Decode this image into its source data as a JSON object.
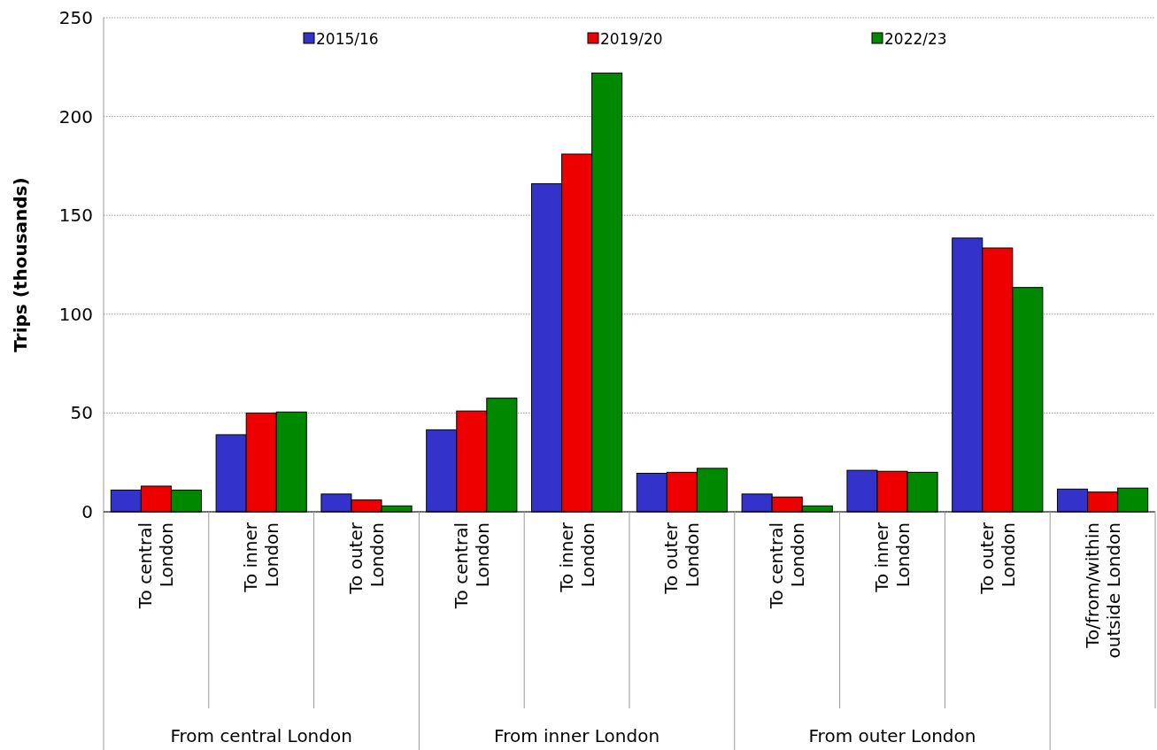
{
  "chart_data": {
    "type": "bar",
    "ylabel": "Trips (thousands)",
    "categories": [
      "To central London",
      "To inner London",
      "To outer London",
      "To central London",
      "To inner London",
      "To outer London",
      "To central London",
      "To inner London",
      "To outer London",
      "To/from/within outside London"
    ],
    "series": [
      {
        "name": "2015/16",
        "color": "#3333cc",
        "values": [
          11,
          39,
          9,
          41.5,
          166,
          19.5,
          9,
          21,
          138.5,
          11.5
        ]
      },
      {
        "name": "2019/20",
        "color": "#ee0000",
        "values": [
          13,
          50,
          6,
          51,
          181,
          20,
          7.5,
          20.5,
          133.5,
          10
        ]
      },
      {
        "name": "2022/23",
        "color": "#008800",
        "values": [
          11,
          50.5,
          3,
          57.5,
          222,
          22,
          3,
          20,
          113.5,
          12
        ]
      }
    ],
    "annotations": [
      "From central London",
      "From inner London",
      "From outer London"
    ],
    "ylim": [
      0,
      250
    ],
    "yticks": [
      0,
      50,
      100,
      150,
      200,
      250
    ],
    "grid": "y",
    "legend": "top"
  }
}
